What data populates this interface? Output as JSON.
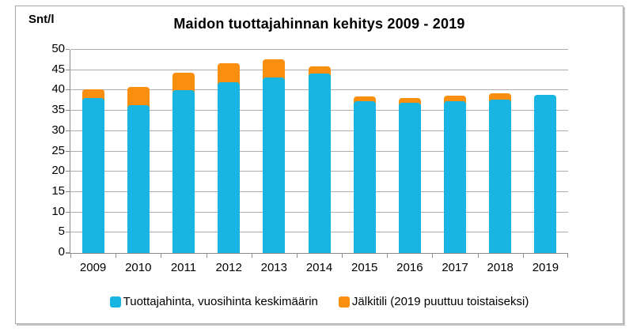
{
  "chart": {
    "title": "Maidon tuottajahinnan kehitys 2009 - 2019",
    "y_axis_unit_label": "Snt/l",
    "colors": {
      "producer_price_blue": "#18b5e3",
      "jalkitili_orange": "#f98e0f",
      "gridline_gray": "#adadad",
      "axis_gray": "#8c8c8c",
      "frame_border_gray": "#a6a6a6",
      "text_black": "#000000",
      "background_white": "#ffffff"
    }
  },
  "chart_data": {
    "type": "bar",
    "stacked": true,
    "title": "Maidon tuottajahinnan kehitys 2009 - 2019",
    "xlabel": "",
    "ylabel": "Snt/l",
    "ylim": [
      0,
      50
    ],
    "ytick_step": 5,
    "ytick_labels": [
      "0",
      "5",
      "10",
      "15",
      "20",
      "25",
      "30",
      "35",
      "40",
      "45",
      "50"
    ],
    "grid": true,
    "legend_position": "bottom",
    "categories": [
      "2009",
      "2010",
      "2011",
      "2012",
      "2013",
      "2014",
      "2015",
      "2016",
      "2017",
      "2018",
      "2019"
    ],
    "series": [
      {
        "name": "Tuottajahinta, vuosihinta keskimäärin",
        "color": "#18b5e3",
        "values": [
          38.2,
          36.4,
          40.0,
          42.0,
          43.1,
          44.1,
          37.4,
          37.0,
          37.4,
          37.7,
          38.9
        ]
      },
      {
        "name": "Jälkitili (2019 puuttuu toistaiseksi)",
        "color": "#f98e0f",
        "values": [
          2.1,
          4.5,
          4.3,
          4.6,
          4.6,
          1.8,
          1.2,
          1.2,
          1.4,
          1.6,
          0
        ]
      }
    ],
    "stack_totals": [
      40.3,
      40.9,
      44.3,
      46.6,
      47.7,
      45.9,
      38.6,
      38.2,
      38.8,
      39.3,
      38.9
    ]
  },
  "legend": {
    "items": [
      {
        "label": "Tuottajahinta, vuosihinta keskimäärin",
        "color": "#18b5e3"
      },
      {
        "label": "Jälkitili (2019 puuttuu toistaiseksi)",
        "color": "#f98e0f"
      }
    ]
  }
}
